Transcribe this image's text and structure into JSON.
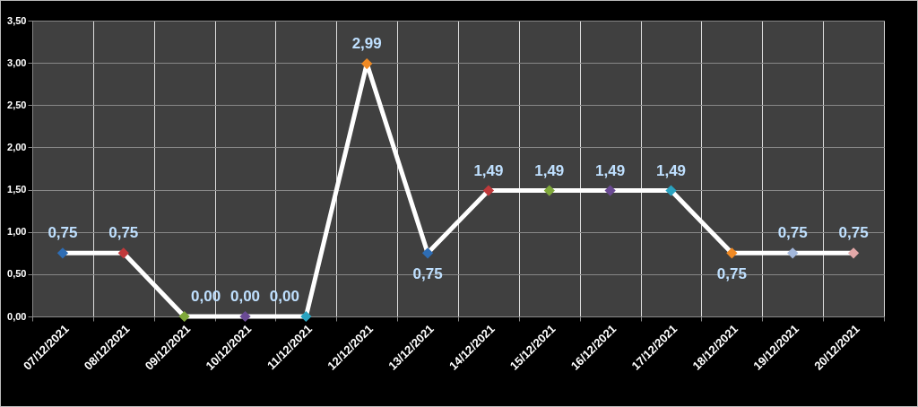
{
  "chart_data": {
    "type": "line",
    "categories": [
      "07/12/2021",
      "08/12/2021",
      "09/12/2021",
      "10/12/2021",
      "11/12/2021",
      "12/12/2021",
      "13/12/2021",
      "14/12/2021",
      "15/12/2021",
      "16/12/2021",
      "17/12/2021",
      "18/12/2021",
      "19/12/2021",
      "20/12/2021"
    ],
    "values": [
      0.75,
      0.75,
      0,
      0,
      0,
      2.99,
      0.75,
      1.49,
      1.49,
      1.49,
      1.49,
      0.75,
      0.75,
      0.75
    ],
    "value_labels": [
      "0,75",
      "0,75",
      "0,00",
      "0,00",
      "0,00",
      "2,99",
      "0,75",
      "1,49",
      "1,49",
      "1,49",
      "1,49",
      "0,75",
      "0,75",
      "0,75"
    ],
    "color": "#ffffff",
    "colors": [
      "#2e6db4",
      "#c0393b",
      "#7fa83a",
      "#6a4a94",
      "#2aa3c0",
      "#f08a24",
      "#2e6db4",
      "#c0393b",
      "#7fa83a",
      "#6a4a94",
      "#2aa3c0",
      "#f08a24",
      "#a3b8dc",
      "#e3a8a8"
    ],
    "ylim": [
      0,
      3.5
    ],
    "yticks": [
      {
        "value": 0,
        "label": "0,00"
      },
      {
        "value": 0.5,
        "label": "0,50"
      },
      {
        "value": 1,
        "label": "1,00"
      },
      {
        "value": 1.5,
        "label": "1,50"
      },
      {
        "value": 2,
        "label": "2,00"
      },
      {
        "value": 2.5,
        "label": "2,50"
      },
      {
        "value": 3,
        "label": "3,00"
      },
      {
        "value": 3.5,
        "label": "3,50"
      }
    ],
    "grid": true,
    "marker": "diamond",
    "line_style": "solid"
  }
}
